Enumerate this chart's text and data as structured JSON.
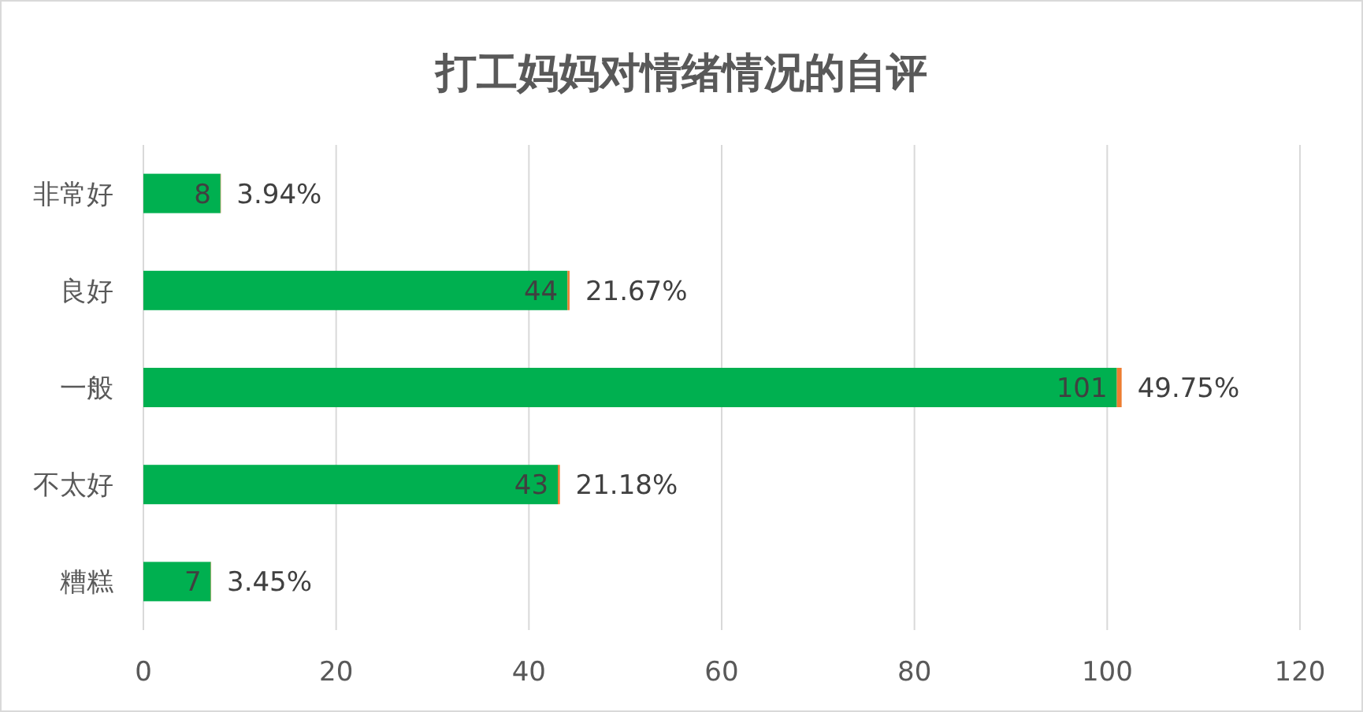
{
  "chart_data": {
    "type": "bar",
    "orientation": "horizontal",
    "stacked": true,
    "title": "打工妈妈对情绪情况的自评",
    "categories": [
      "非常好",
      "良好",
      "一般",
      "不太好",
      "糟糕"
    ],
    "series": [
      {
        "color": "#00b050",
        "values": [
          8,
          44,
          101,
          43,
          7
        ],
        "data_labels": true
      },
      {
        "color": "#ed7d31",
        "values": [
          0.0394,
          0.2167,
          0.4975,
          0.2118,
          0.0345
        ],
        "value_labels": [
          "3.94%",
          "21.67%",
          "49.75%",
          "21.18%",
          "3.45%"
        ]
      }
    ],
    "xlim": [
      0,
      120
    ],
    "xticks": [
      0,
      20,
      40,
      60,
      80,
      100,
      120
    ],
    "grid": "x"
  }
}
